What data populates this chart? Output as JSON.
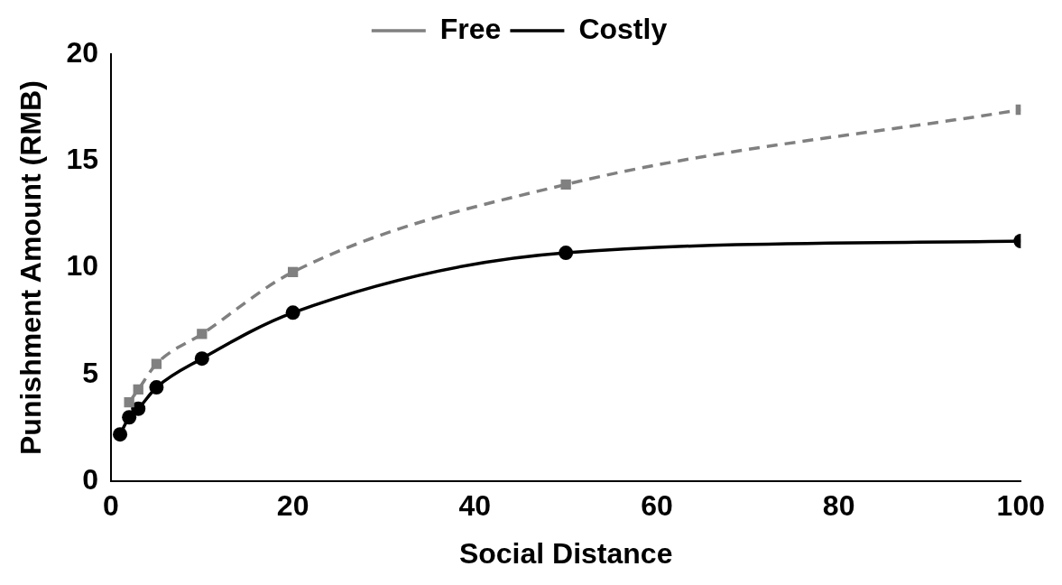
{
  "chart_data": {
    "type": "line",
    "xlabel": "Social Distance",
    "ylabel": "Punishment Amount (RMB)",
    "x": [
      1,
      2,
      3,
      5,
      10,
      20,
      50,
      100
    ],
    "series": [
      {
        "name": "Free",
        "color": "#808080",
        "values": [
          null,
          3.7,
          4.3,
          5.5,
          6.9,
          9.8,
          13.9,
          17.4
        ],
        "marker": "square",
        "line_style": "dashed"
      },
      {
        "name": "Costly",
        "color": "#000000",
        "values": [
          2.2,
          3.0,
          3.4,
          4.4,
          5.75,
          7.9,
          10.7,
          11.25
        ],
        "marker": "circle",
        "line_style": "solid"
      }
    ],
    "xlim": [
      0,
      100
    ],
    "xticks": [
      0,
      20,
      40,
      60,
      80,
      100
    ],
    "ylim": [
      0,
      20
    ],
    "yticks": [
      0,
      5,
      10,
      15,
      20
    ],
    "grid": false,
    "legend": "top"
  }
}
